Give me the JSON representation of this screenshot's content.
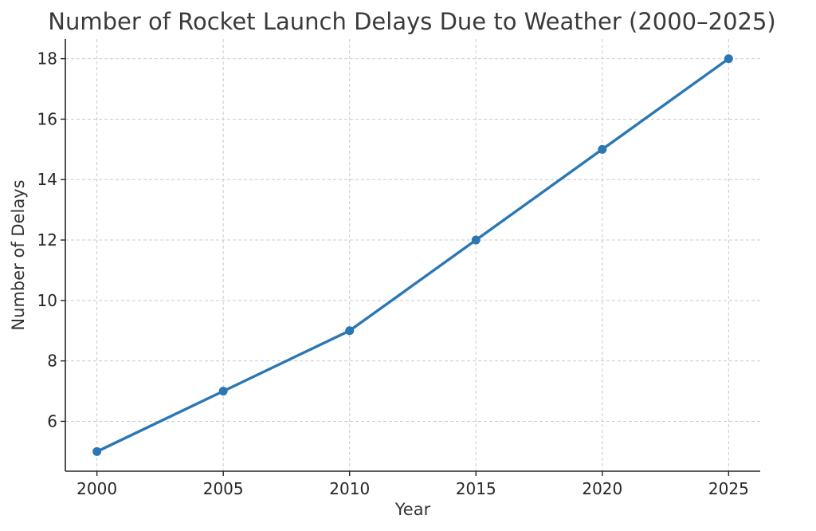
{
  "chart_data": {
    "type": "line",
    "title": "Number of Rocket Launch Delays Due to Weather (2000–2025)",
    "xlabel": "Year",
    "ylabel": "Number of Delays",
    "x": [
      2000,
      2005,
      2010,
      2015,
      2020,
      2025
    ],
    "series": [
      {
        "values": [
          5,
          7,
          9,
          12,
          15,
          18
        ],
        "color": "#2a77b4"
      }
    ],
    "xticks": [
      2000,
      2005,
      2010,
      2015,
      2020,
      2025
    ],
    "yticks": [
      6,
      8,
      10,
      12,
      14,
      16,
      18
    ],
    "xlim": [
      1998.75,
      2026.25
    ],
    "ylim": [
      4.35,
      18.65
    ],
    "grid": true,
    "markers": "circle"
  }
}
